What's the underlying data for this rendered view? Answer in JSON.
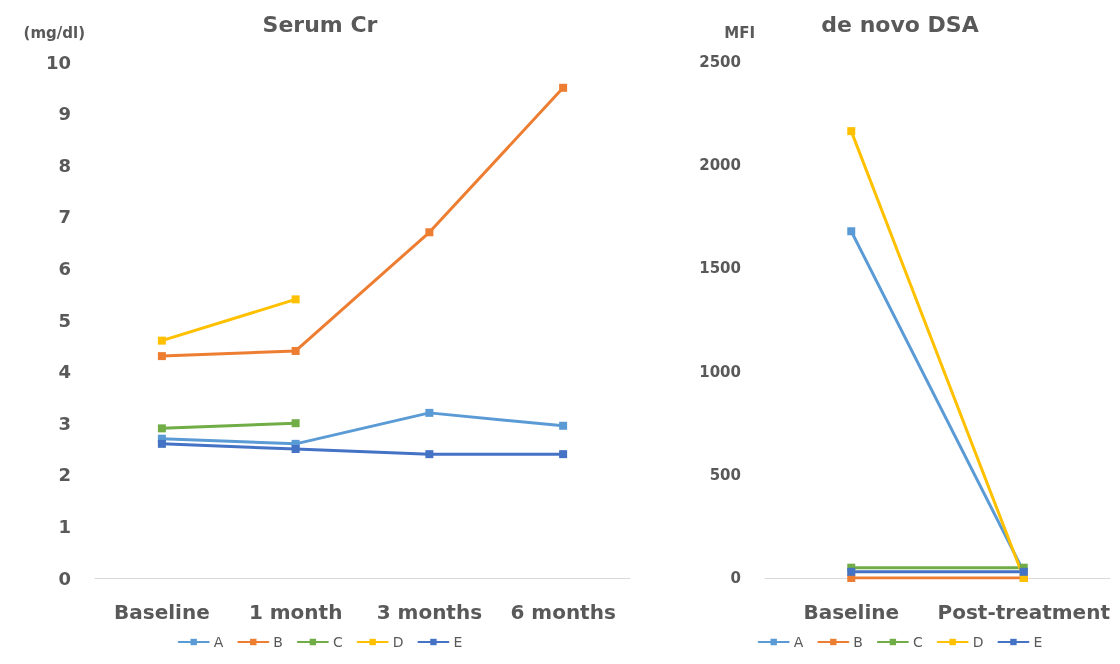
{
  "chart_data": [
    {
      "type": "line",
      "title": "Serum Cr",
      "ylabel": "(mg/dl)",
      "categories": [
        "Baseline",
        "1 month",
        "3 months",
        "6 months"
      ],
      "ylim": [
        0,
        10
      ],
      "yticks": [
        0,
        1,
        2,
        3,
        4,
        5,
        6,
        7,
        8,
        9,
        10
      ],
      "grid": false,
      "legend": "bottom",
      "marker": "square",
      "line_style": "solid",
      "series": [
        {
          "name": "A",
          "color": "#5b9bd5",
          "values": [
            2.7,
            2.6,
            3.2,
            2.95
          ]
        },
        {
          "name": "B",
          "color": "#ed7d31",
          "values": [
            4.3,
            4.4,
            6.7,
            9.5
          ]
        },
        {
          "name": "C",
          "color": "#70ad47",
          "values": [
            2.9,
            3.0,
            null,
            null
          ]
        },
        {
          "name": "D",
          "color": "#ffc000",
          "values": [
            4.6,
            5.4,
            null,
            null
          ]
        },
        {
          "name": "E",
          "color": "#4472c4",
          "values": [
            2.6,
            2.5,
            2.4,
            2.4
          ]
        }
      ]
    },
    {
      "type": "line",
      "title": "de novo DSA",
      "ylabel": "MFI",
      "categories": [
        "Baseline",
        "Post-treatment"
      ],
      "ylim": [
        0,
        2500
      ],
      "yticks": [
        0,
        500,
        1000,
        1500,
        2000,
        2500
      ],
      "grid": false,
      "legend": "bottom",
      "marker": "square",
      "line_style": "solid",
      "series": [
        {
          "name": "A",
          "color": "#5b9bd5",
          "values": [
            1680,
            30
          ]
        },
        {
          "name": "B",
          "color": "#ed7d31",
          "values": [
            0,
            0
          ]
        },
        {
          "name": "C",
          "color": "#70ad47",
          "values": [
            50,
            50
          ]
        },
        {
          "name": "D",
          "color": "#ffc000",
          "values": [
            2165,
            0
          ]
        },
        {
          "name": "E",
          "color": "#4472c4",
          "values": [
            30,
            30
          ]
        }
      ]
    }
  ]
}
